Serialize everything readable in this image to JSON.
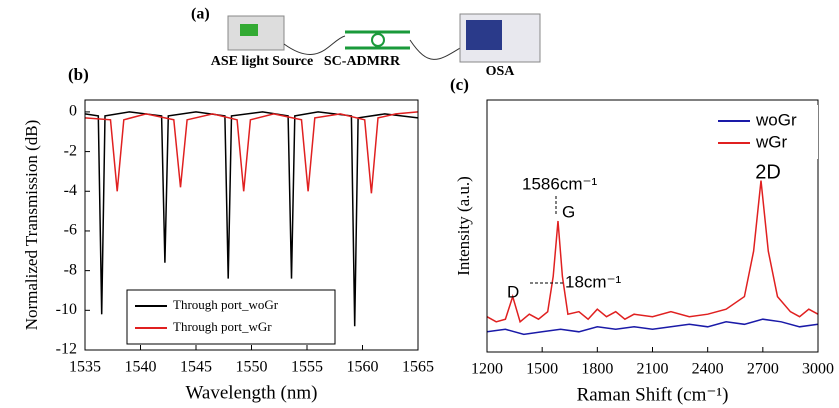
{
  "diagram": {
    "label": "(a)",
    "nodes": [
      {
        "label": "ASE light Source"
      },
      {
        "label": "SC-ADMRR"
      },
      {
        "label": "OSA"
      }
    ]
  },
  "chart_data": [
    {
      "type": "line",
      "panel_label": "(b)",
      "xlabel": "Wavelength (nm)",
      "ylabel": "Normalized Transmission (dB)",
      "xlim": [
        1535,
        1565
      ],
      "xticks": [
        1535,
        1540,
        1545,
        1550,
        1555,
        1560,
        1565
      ],
      "ylim": [
        -12,
        0.6
      ],
      "yticks": [
        0,
        -2,
        -4,
        -6,
        -8,
        -10,
        -12
      ],
      "legend": "lower left",
      "series": [
        {
          "name": "Through port_woGr",
          "color": "#000000",
          "x": [
            1535,
            1536.2,
            1536.5,
            1536.8,
            1539,
            1541.9,
            1542.2,
            1542.5,
            1545,
            1547.6,
            1547.9,
            1548.2,
            1551,
            1553.3,
            1553.6,
            1553.9,
            1556,
            1559.0,
            1559.3,
            1559.6,
            1562,
            1565
          ],
          "values": [
            -0.1,
            -0.2,
            -10.2,
            -0.2,
            0,
            -0.2,
            -7.6,
            -0.2,
            0,
            -0.2,
            -8.4,
            -0.2,
            0,
            -0.2,
            -8.4,
            -0.2,
            0,
            -0.2,
            -10.8,
            -0.3,
            -0.1,
            -0.3
          ]
        },
        {
          "name": "Through port_wGr",
          "color": "#e02020",
          "x": [
            1535,
            1537.3,
            1537.9,
            1538.5,
            1540.5,
            1543.0,
            1543.6,
            1544.2,
            1546.5,
            1548.7,
            1549.3,
            1549.9,
            1552,
            1554.5,
            1555.1,
            1555.7,
            1558,
            1560.2,
            1560.8,
            1561.4,
            1563,
            1565
          ],
          "values": [
            -0.3,
            -0.4,
            -4,
            -0.4,
            -0.1,
            -0.4,
            -3.8,
            -0.4,
            -0.1,
            -0.4,
            -4,
            -0.4,
            -0.1,
            -0.4,
            -4,
            -0.3,
            -0.1,
            -0.4,
            -4.1,
            -0.3,
            -0.1,
            0
          ]
        }
      ]
    },
    {
      "type": "line",
      "panel_label": "(c)",
      "xlabel": "Raman Shift (cm⁻¹)",
      "ylabel": "Intensity (a.u.)",
      "xlim": [
        1200,
        3000
      ],
      "xticks": [
        1200,
        1500,
        1800,
        2100,
        2400,
        2700,
        3000
      ],
      "ylim": [
        0,
        1
      ],
      "legend": "upper right",
      "annotations": [
        "1586cm⁻¹",
        "G",
        "D",
        "18cm⁻¹",
        "2D"
      ],
      "series": [
        {
          "name": "woGr",
          "color": "#1a1aa8",
          "x": [
            1200,
            1300,
            1400,
            1500,
            1600,
            1700,
            1800,
            1900,
            2000,
            2100,
            2200,
            2300,
            2400,
            2500,
            2600,
            2700,
            2800,
            2900,
            3000
          ],
          "values": [
            0.08,
            0.09,
            0.07,
            0.08,
            0.09,
            0.08,
            0.1,
            0.09,
            0.1,
            0.09,
            0.1,
            0.11,
            0.1,
            0.12,
            0.11,
            0.13,
            0.12,
            0.1,
            0.11
          ]
        },
        {
          "name": "wGr",
          "color": "#e02020",
          "x": [
            1200,
            1250,
            1300,
            1340,
            1380,
            1430,
            1480,
            1530,
            1560,
            1586,
            1610,
            1640,
            1700,
            1750,
            1800,
            1850,
            1900,
            1950,
            2000,
            2100,
            2200,
            2300,
            2400,
            2500,
            2600,
            2650,
            2690,
            2730,
            2780,
            2850,
            2900,
            2950,
            3000
          ],
          "values": [
            0.14,
            0.12,
            0.13,
            0.22,
            0.12,
            0.15,
            0.13,
            0.16,
            0.3,
            0.52,
            0.3,
            0.15,
            0.16,
            0.13,
            0.17,
            0.14,
            0.16,
            0.13,
            0.15,
            0.14,
            0.16,
            0.14,
            0.15,
            0.17,
            0.22,
            0.4,
            0.68,
            0.4,
            0.22,
            0.16,
            0.14,
            0.17,
            0.15
          ]
        }
      ]
    }
  ]
}
